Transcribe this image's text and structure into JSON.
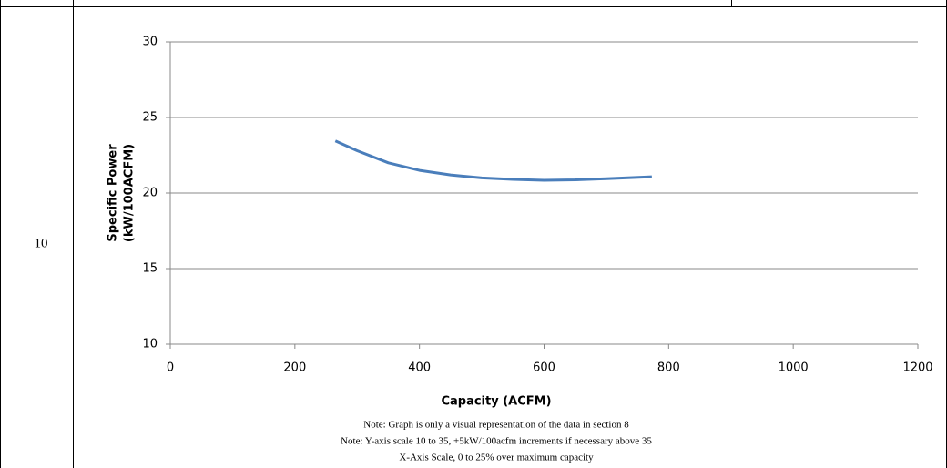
{
  "row_label": "10",
  "chart_data": {
    "type": "line",
    "ylabel": [
      "Specific Power",
      "(kW/100ACFM)"
    ],
    "xlabel": "Capacity (ACFM)",
    "x": [
      265,
      300,
      350,
      400,
      450,
      500,
      550,
      600,
      650,
      700,
      773
    ],
    "series": [
      {
        "color": "#4a7ebb",
        "values": [
          23.45,
          22.8,
          22.0,
          21.5,
          21.2,
          21.0,
          20.9,
          20.84,
          20.87,
          20.95,
          21.08
        ]
      }
    ],
    "xlim": [
      0,
      1200
    ],
    "xticks": [
      0,
      200,
      400,
      600,
      800,
      1000,
      1200
    ],
    "ylim": [
      10,
      30
    ],
    "yticks": [
      10,
      15,
      20,
      25,
      30
    ],
    "grid": true
  },
  "notes": [
    "Note: Graph is only a visual representation of the data in section 8",
    "Note: Y-axis scale 10 to 35, +5kW/100acfm increments if necessary above 35",
    "X-Axis Scale, 0 to 25% over maximum capacity"
  ]
}
